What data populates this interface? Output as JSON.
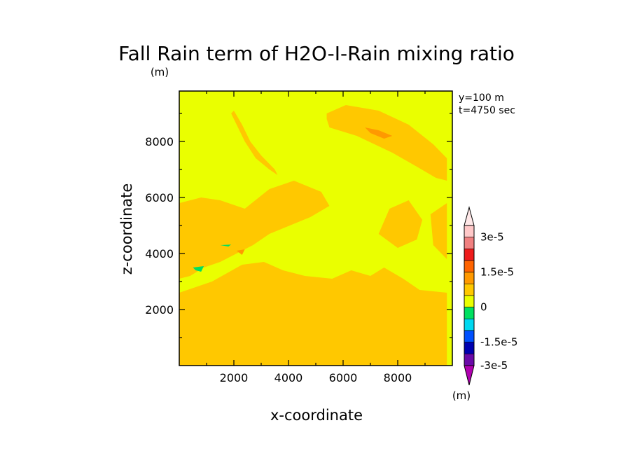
{
  "chart_data": {
    "type": "heatmap",
    "title": "Fall Rain term of H2O-I-Rain mixing ratio",
    "units_label": "(m)",
    "xlabel": "x-coordinate",
    "ylabel": "z-coordinate",
    "annotations": [
      "y=100 m",
      "t=4750 sec"
    ],
    "xlim": [
      0,
      10000
    ],
    "ylim": [
      0,
      9800
    ],
    "x_ticks": [
      2000,
      4000,
      6000,
      8000
    ],
    "y_ticks": [
      2000,
      4000,
      6000,
      8000
    ],
    "x_tick_labels": [
      "2000",
      "4000",
      "6000",
      "8000"
    ],
    "y_tick_labels": [
      "2000",
      "4000",
      "6000",
      "8000"
    ],
    "background_level_color": "#eaff00",
    "colorbar": {
      "labels": [
        "3e-5",
        "1.5e-5",
        "0",
        "-1.5e-5",
        "-3e-5"
      ],
      "units_label": "(m)",
      "levels_top_to_bottom": [
        {
          "color": "#ffc8c8"
        },
        {
          "color": "#f08080"
        },
        {
          "color": "#ee1c1c"
        },
        {
          "color": "#ff6400"
        },
        {
          "color": "#ff9900"
        },
        {
          "color": "#ffc800"
        },
        {
          "color": "#eaff00"
        },
        {
          "color": "#00e060"
        },
        {
          "color": "#00d8f0"
        },
        {
          "color": "#0050ff"
        },
        {
          "color": "#0000b0"
        },
        {
          "color": "#6a0aa8"
        }
      ],
      "top_triangle_color": "#ffe8e8",
      "bottom_triangle_color": "#b000b0"
    },
    "regions": [
      {
        "level": "0 to 0.5e-5 (orange)",
        "color": "#ffc800",
        "polygon": [
          [
            5400,
            9000
          ],
          [
            6100,
            9300
          ],
          [
            7300,
            9100
          ],
          [
            8400,
            8600
          ],
          [
            9300,
            7900
          ],
          [
            9800,
            7400
          ],
          [
            9800,
            6600
          ],
          [
            9400,
            6700
          ],
          [
            8700,
            7100
          ],
          [
            7800,
            7600
          ],
          [
            6500,
            8200
          ],
          [
            5500,
            8500
          ],
          [
            5400,
            8800
          ]
        ]
      },
      {
        "level": "0 to 0.5e-5 (orange)",
        "color": "#ffc800",
        "polygon": [
          [
            2000,
            9100
          ],
          [
            2300,
            8600
          ],
          [
            2600,
            8000
          ],
          [
            3000,
            7500
          ],
          [
            3500,
            7000
          ],
          [
            3600,
            6800
          ],
          [
            3300,
            7000
          ],
          [
            2800,
            7400
          ],
          [
            2400,
            8000
          ],
          [
            2100,
            8600
          ],
          [
            1900,
            9000
          ]
        ]
      },
      {
        "level": "0 to 0.5e-5 (orange)",
        "color": "#ffc800",
        "polygon": [
          [
            0,
            5800
          ],
          [
            800,
            6000
          ],
          [
            1500,
            5900
          ],
          [
            2400,
            5600
          ],
          [
            3300,
            6300
          ],
          [
            4200,
            6600
          ],
          [
            5200,
            6200
          ],
          [
            5500,
            5700
          ],
          [
            4800,
            5300
          ],
          [
            3800,
            4900
          ],
          [
            3300,
            4700
          ],
          [
            2700,
            4300
          ],
          [
            2100,
            4000
          ],
          [
            1500,
            3700
          ],
          [
            900,
            3500
          ],
          [
            400,
            3200
          ],
          [
            0,
            3100
          ]
        ]
      },
      {
        "level": "0 to 0.5e-5 (orange)",
        "color": "#ffc800",
        "polygon": [
          [
            0,
            2600
          ],
          [
            1200,
            3000
          ],
          [
            2300,
            3600
          ],
          [
            3100,
            3700
          ],
          [
            3800,
            3400
          ],
          [
            4600,
            3200
          ],
          [
            5600,
            3100
          ],
          [
            6300,
            3400
          ],
          [
            7000,
            3200
          ],
          [
            7500,
            3500
          ],
          [
            8200,
            3100
          ],
          [
            8800,
            2700
          ],
          [
            9800,
            2600
          ],
          [
            9800,
            0
          ],
          [
            0,
            0
          ]
        ]
      },
      {
        "level": "0 to 0.5e-5 (orange)",
        "color": "#ffc800",
        "polygon": [
          [
            7300,
            4700
          ],
          [
            7700,
            5600
          ],
          [
            8400,
            5900
          ],
          [
            8900,
            5200
          ],
          [
            8700,
            4500
          ],
          [
            8000,
            4200
          ]
        ]
      },
      {
        "level": "0 to 0.5e-5 (orange)",
        "color": "#ffc800",
        "polygon": [
          [
            9200,
            5400
          ],
          [
            9800,
            5800
          ],
          [
            9800,
            3800
          ],
          [
            9300,
            4300
          ]
        ]
      },
      {
        "level": "0.5e-5 to 1e-5 (dark orange)",
        "color": "#ff9900",
        "polygon": [
          [
            6800,
            8500
          ],
          [
            7300,
            8400
          ],
          [
            7800,
            8200
          ],
          [
            7500,
            8100
          ],
          [
            7000,
            8300
          ]
        ]
      },
      {
        "level": "0.5e-5 to 1e-5 (dark orange)",
        "color": "#ff9900",
        "polygon": [
          [
            2100,
            4100
          ],
          [
            2400,
            4150
          ],
          [
            2300,
            3950
          ]
        ]
      },
      {
        "level": "-1e-5 to -0.5e-5 (green)",
        "color": "#00e060",
        "polygon": [
          [
            500,
            3500
          ],
          [
            900,
            3550
          ],
          [
            800,
            3350
          ],
          [
            600,
            3400
          ]
        ]
      },
      {
        "level": "-1e-5 to -0.5e-5 (green)",
        "color": "#00e060",
        "polygon": [
          [
            1500,
            4300
          ],
          [
            1900,
            4320
          ],
          [
            1800,
            4250
          ]
        ]
      }
    ]
  }
}
